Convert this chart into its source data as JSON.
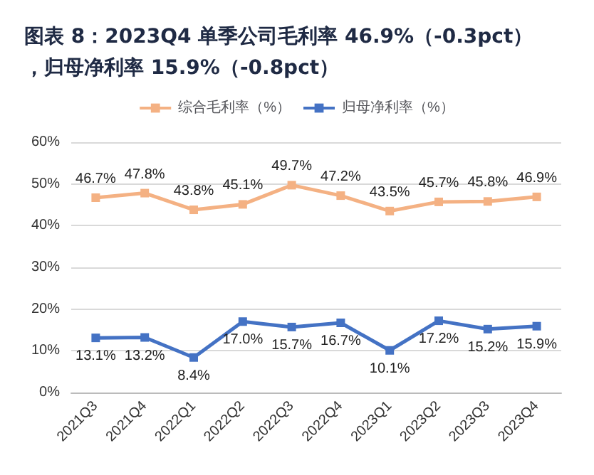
{
  "chart_data": {
    "type": "line",
    "title": "图表 8：2023Q4 单季公司毛利率 46.9%（-0.3pct），归母净利率 15.9%（-0.8pct）",
    "categories": [
      "2021Q3",
      "2021Q4",
      "2022Q1",
      "2022Q2",
      "2022Q3",
      "2022Q4",
      "2023Q1",
      "2023Q2",
      "2023Q3",
      "2023Q4"
    ],
    "series": [
      {
        "name": "综合毛利率（%）",
        "color": "#f4b183",
        "values": [
          46.7,
          47.8,
          43.8,
          45.1,
          49.7,
          47.2,
          43.5,
          45.7,
          45.8,
          46.9
        ],
        "value_labels": [
          "46.7%",
          "47.8%",
          "43.8%",
          "45.1%",
          "49.7%",
          "47.2%",
          "43.5%",
          "45.7%",
          "45.8%",
          "46.9%"
        ]
      },
      {
        "name": "归母净利率（%）",
        "color": "#4472c4",
        "values": [
          13.1,
          13.2,
          8.4,
          17.0,
          15.7,
          16.7,
          10.1,
          17.2,
          15.2,
          15.9
        ],
        "value_labels": [
          "13.1%",
          "13.2%",
          "8.4%",
          "17.0%",
          "15.7%",
          "16.7%",
          "10.1%",
          "17.2%",
          "15.2%",
          "15.9%"
        ]
      }
    ],
    "ylim": [
      0,
      60
    ],
    "yticks": [
      {
        "value": 0,
        "label": "0%"
      },
      {
        "value": 10,
        "label": "10%"
      },
      {
        "value": 20,
        "label": "20%"
      },
      {
        "value": 30,
        "label": "30%"
      },
      {
        "value": 40,
        "label": "40%"
      },
      {
        "value": 50,
        "label": "50%"
      },
      {
        "value": 60,
        "label": "60%"
      }
    ],
    "grid": "y",
    "legend": "top",
    "marker": "square",
    "line_style": "solid"
  }
}
